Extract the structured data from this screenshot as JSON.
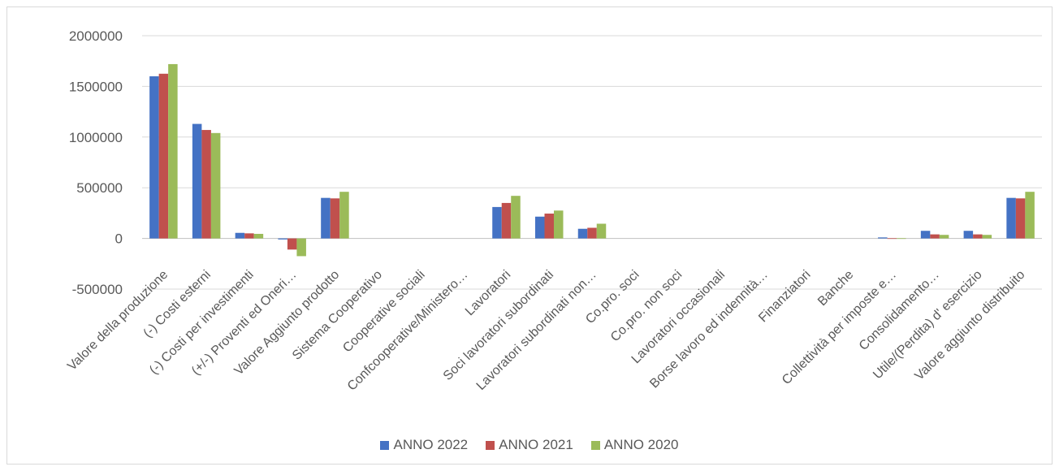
{
  "chart_data": {
    "type": "bar",
    "categories": [
      "Valore della produzione",
      "(-) Costi esterni",
      "(-) Costi per investimenti",
      "(+/-) Proventi ed Oneri…",
      "Valore Aggiunto prodotto",
      "Sistema Cooperativo",
      "Cooperative sociali",
      "Confcooperative/Ministero…",
      "Lavoratori",
      "Soci lavoratori subordinati",
      "Lavoratori subordinati non…",
      "Co.pro. soci",
      "Co.pro. non soci",
      "Lavoratori occasionali",
      "Borse lavoro ed indennità…",
      "Finanziatori",
      "Banche",
      "Collettività per imposte e…",
      "Consolidamento…",
      "Utile/(Perdita) d' esercizio",
      "Valore aggiunto distribuito"
    ],
    "series": [
      {
        "name": "ANNO 2022",
        "color": "#4472c4",
        "values": [
          1600000,
          1130000,
          55000,
          -10000,
          400000,
          0,
          0,
          0,
          310000,
          215000,
          95000,
          0,
          0,
          0,
          0,
          0,
          0,
          10000,
          75000,
          75000,
          400000
        ]
      },
      {
        "name": "ANNO 2021",
        "color": "#c0504d",
        "values": [
          1625000,
          1070000,
          50000,
          -110000,
          395000,
          0,
          0,
          0,
          350000,
          245000,
          105000,
          0,
          0,
          0,
          0,
          0,
          0,
          2000,
          40000,
          40000,
          395000
        ]
      },
      {
        "name": "ANNO 2020",
        "color": "#9bbb59",
        "values": [
          1720000,
          1040000,
          45000,
          -175000,
          460000,
          0,
          0,
          0,
          420000,
          275000,
          145000,
          0,
          0,
          0,
          0,
          0,
          0,
          2000,
          35000,
          35000,
          460000
        ]
      }
    ],
    "ylim": [
      -500000,
      2000000
    ],
    "yticks": [
      -500000,
      0,
      500000,
      1000000,
      1500000,
      2000000
    ],
    "grid": true,
    "legend_position": "bottom"
  }
}
